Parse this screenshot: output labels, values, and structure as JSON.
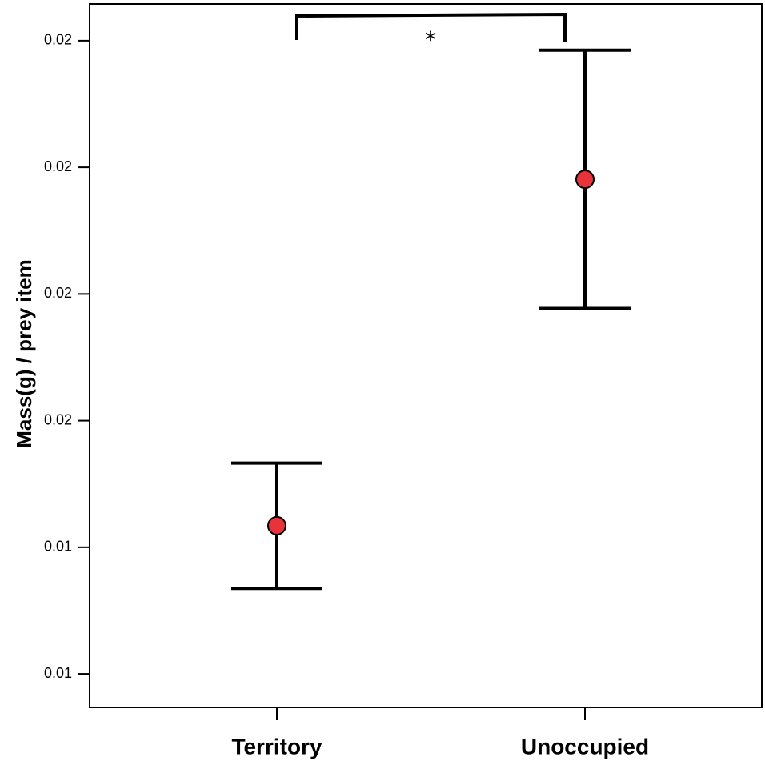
{
  "chart_data": {
    "type": "errorbar",
    "y_label": "Mass(g) / prey item",
    "categories": [
      "Territory",
      "Unoccupied"
    ],
    "series": [
      {
        "color": "#e8333a",
        "values": [
          0.01434,
          0.01981
        ],
        "errors": [
          0.00099,
          0.00204
        ]
      }
    ],
    "ylim": [
      0.01147,
      0.02258
    ],
    "yticks": [
      {
        "value": 0.012,
        "label": "0.01"
      },
      {
        "value": 0.014,
        "label": "0.01"
      },
      {
        "value": 0.016,
        "label": "0.02"
      },
      {
        "value": 0.018,
        "label": "0.02"
      },
      {
        "value": 0.02,
        "label": "0.02"
      },
      {
        "value": 0.022,
        "label": "0.02"
      }
    ],
    "annotation": "*"
  }
}
